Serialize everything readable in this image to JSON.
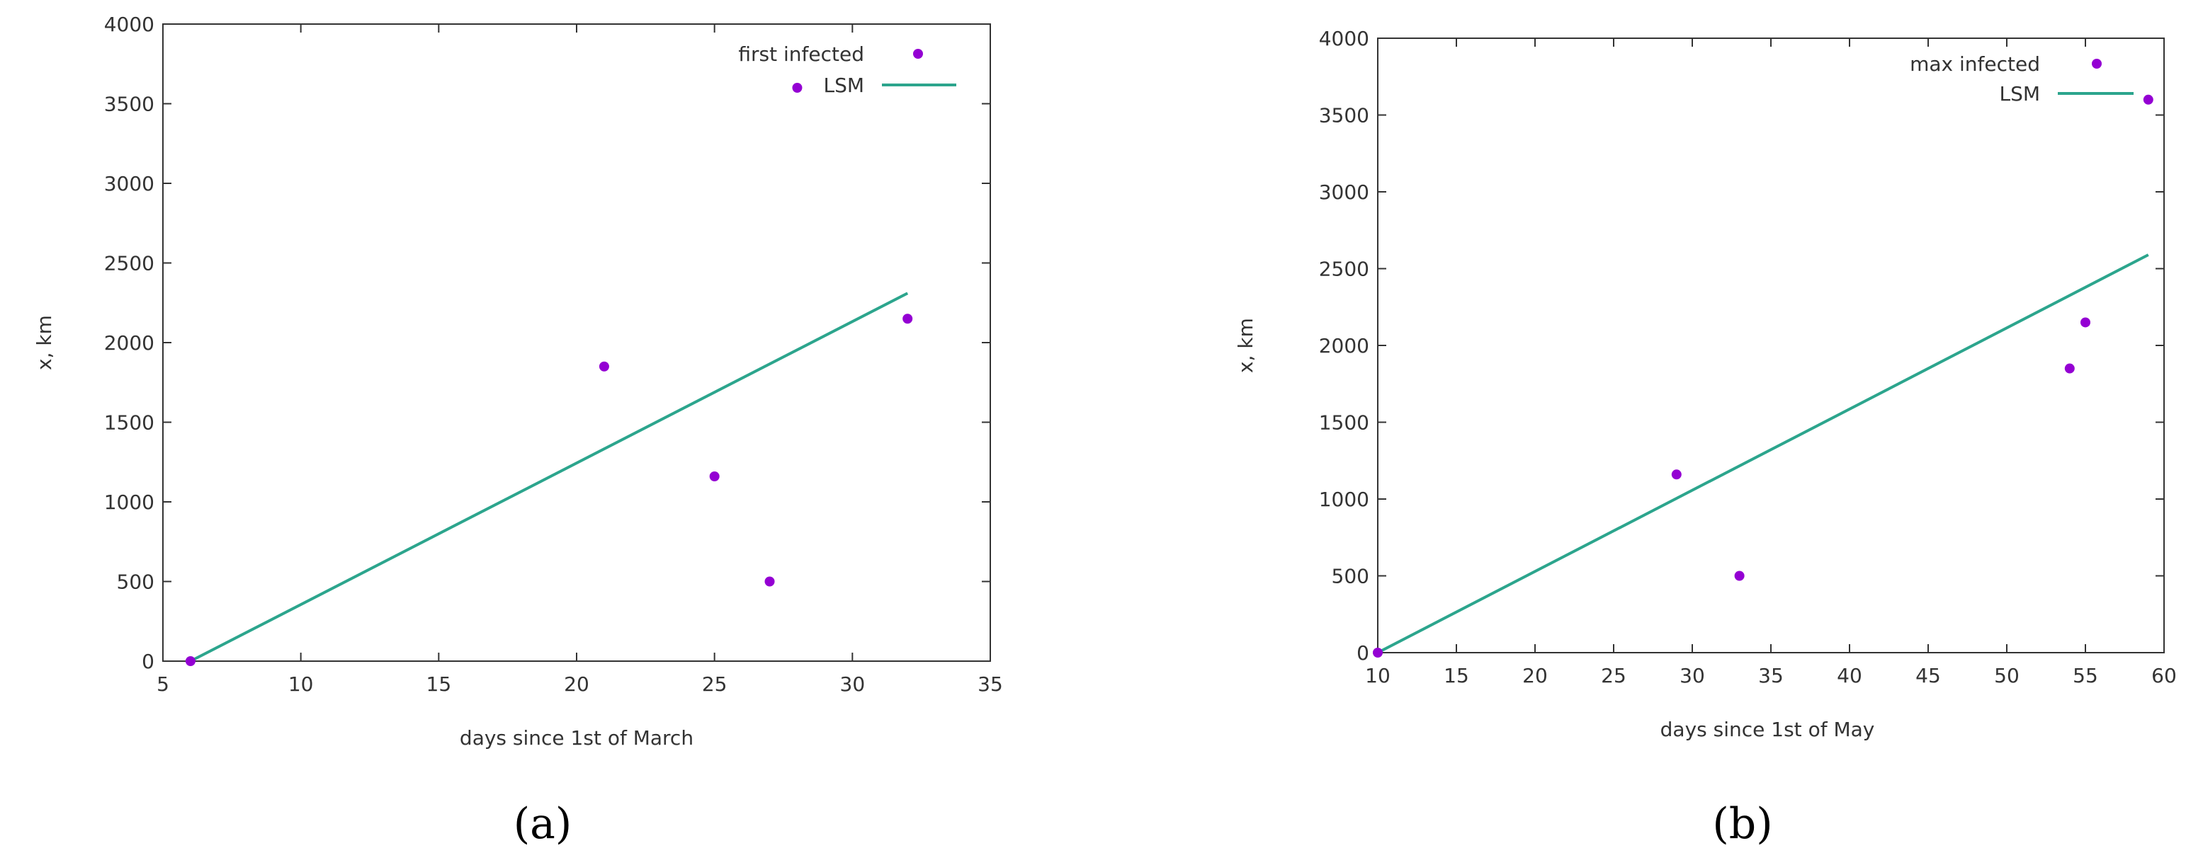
{
  "colors": {
    "points": "#9400d3",
    "fit_line": "#2ca58d",
    "axis": "#333333"
  },
  "chart_data": [
    {
      "panel_label": "(a)",
      "type": "scatter",
      "xlabel": "days since 1st of March",
      "ylabel": "x, km",
      "xlim": [
        5,
        35
      ],
      "ylim": [
        0,
        4000
      ],
      "xticks": [
        5,
        10,
        15,
        20,
        25,
        30,
        35
      ],
      "yticks": [
        0,
        500,
        1000,
        1500,
        2000,
        2500,
        3000,
        3500,
        4000
      ],
      "legend_position": "top-right",
      "series": [
        {
          "name": "first infected",
          "kind": "points",
          "points": [
            [
              6,
              0
            ],
            [
              21,
              1850
            ],
            [
              25,
              1160
            ],
            [
              27,
              500
            ],
            [
              28,
              3600
            ],
            [
              32,
              2150
            ]
          ]
        },
        {
          "name": "LSM",
          "kind": "line",
          "points": [
            [
              6,
              0
            ],
            [
              32,
              2310
            ]
          ]
        }
      ]
    },
    {
      "panel_label": "(b)",
      "type": "scatter",
      "xlabel": "days since 1st of May",
      "ylabel": "x, km",
      "xlim": [
        10,
        60
      ],
      "ylim": [
        0,
        4000
      ],
      "xticks": [
        10,
        15,
        20,
        25,
        30,
        35,
        40,
        45,
        50,
        55,
        60
      ],
      "yticks": [
        0,
        500,
        1000,
        1500,
        2000,
        2500,
        3000,
        3500,
        4000
      ],
      "legend_position": "top-right",
      "series": [
        {
          "name": "max infected",
          "kind": "points",
          "points": [
            [
              10,
              0
            ],
            [
              29,
              1160
            ],
            [
              33,
              500
            ],
            [
              54,
              1850
            ],
            [
              55,
              2150
            ],
            [
              59,
              3600
            ]
          ]
        },
        {
          "name": "LSM",
          "kind": "line",
          "points": [
            [
              10,
              0
            ],
            [
              59,
              2590
            ]
          ]
        }
      ]
    }
  ]
}
